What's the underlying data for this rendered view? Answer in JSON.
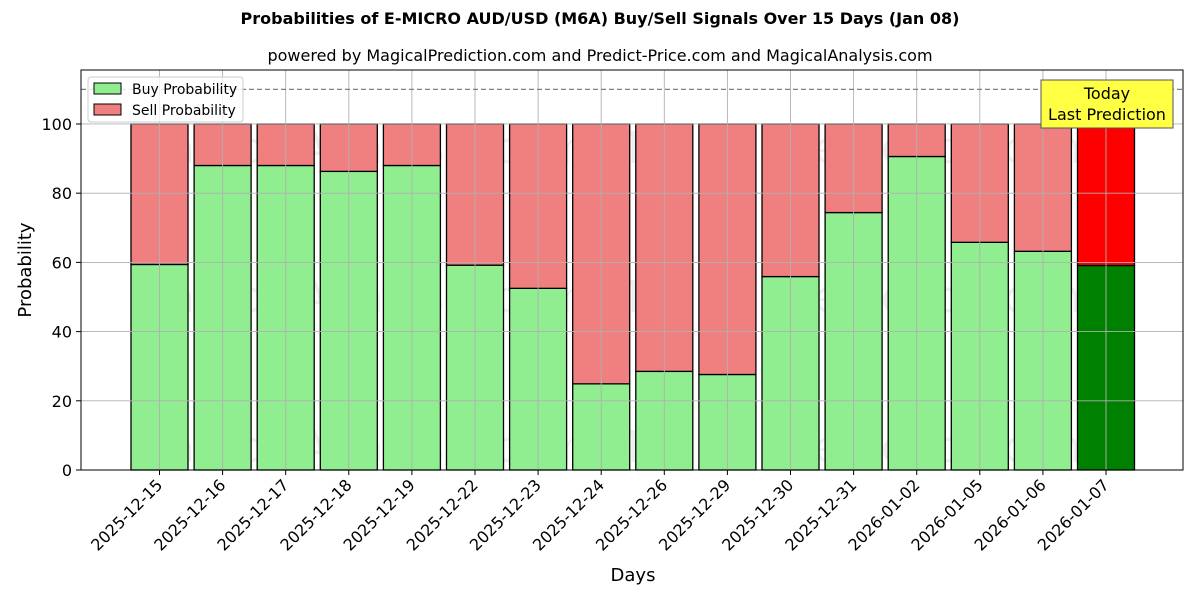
{
  "title": "Probabilities of E-MICRO AUD/USD (M6A) Buy/Sell Signals Over 15 Days (Jan 08)",
  "subtitle": "powered by MagicalPrediction.com and Predict-Price.com and MagicalAnalysis.com",
  "colors": {
    "buy": "#90ee90",
    "sell": "#f08080",
    "buy_today": "#008000",
    "sell_today": "#ff0000",
    "annotation_bg": "#ffff44",
    "grid": "#b0b0b0"
  },
  "legend": {
    "buy_label": "Buy Probability",
    "sell_label": "Sell Probability"
  },
  "annotation": {
    "line1": "Today",
    "line2": "Last Prediction"
  },
  "watermarks": {
    "left": "MagicalAnalysis.com",
    "right": "MagicalPrediction.com"
  },
  "chart_data": {
    "type": "bar",
    "stacked": true,
    "title": "Probabilities of E-MICRO AUD/USD (M6A) Buy/Sell Signals Over 15 Days (Jan 08)",
    "subtitle": "powered by MagicalPrediction.com and Predict-Price.com and MagicalAnalysis.com",
    "xlabel": "Days",
    "ylabel": "Probability",
    "ylim": [
      0,
      115.6
    ],
    "yticks": [
      0,
      20,
      40,
      60,
      80,
      100
    ],
    "grid": true,
    "legend_position": "upper left",
    "reference_line": {
      "y": 110,
      "style": "dashed"
    },
    "categories": [
      "2025-12-15",
      "2025-12-16",
      "2025-12-17",
      "2025-12-18",
      "2025-12-19",
      "2025-12-22",
      "2025-12-23",
      "2025-12-24",
      "2025-12-26",
      "2025-12-29",
      "2025-12-30",
      "2025-12-31",
      "2026-01-02",
      "2026-01-05",
      "2026-01-06",
      "2026-01-07"
    ],
    "series": [
      {
        "name": "Buy Probability",
        "values": [
          59.4,
          88.0,
          88.0,
          86.3,
          88.0,
          59.2,
          52.5,
          24.9,
          28.5,
          27.6,
          55.9,
          74.4,
          90.6,
          65.8,
          63.2,
          59.1
        ]
      },
      {
        "name": "Sell Probability",
        "values": [
          40.6,
          12.0,
          12.0,
          13.7,
          12.0,
          40.8,
          47.5,
          75.1,
          71.5,
          72.4,
          44.1,
          25.6,
          9.4,
          34.2,
          36.8,
          40.9
        ]
      }
    ],
    "annotations": [
      {
        "text": "Today\nLast Prediction",
        "x": "2026-01-07"
      }
    ],
    "highlight_last_bar": true
  }
}
